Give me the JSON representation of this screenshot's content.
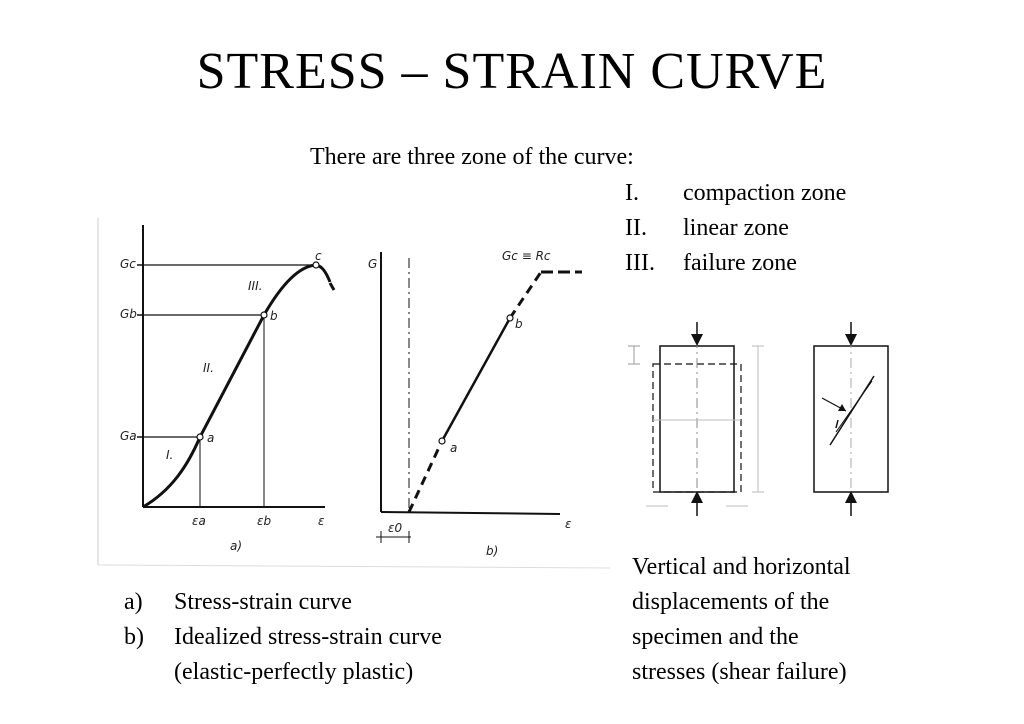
{
  "title": "STRESS – STRAIN CURVE",
  "intro": "There are three zone of the curve:",
  "zones": [
    {
      "num": "I.",
      "label": "compaction zone"
    },
    {
      "num": "II.",
      "label": "linear zone"
    },
    {
      "num": "III.",
      "label": "failure zone"
    }
  ],
  "figure_a": {
    "y_ticks": [
      "Gc",
      "Gb",
      "Ga"
    ],
    "x_ticks": [
      "εa",
      "εb",
      "ε"
    ],
    "points": [
      "a",
      "b",
      "c"
    ],
    "zone_labels": [
      "I.",
      "II.",
      "III."
    ],
    "caption": "a)"
  },
  "figure_b": {
    "y_label": "G",
    "top_label": "Gc ≡ Rc",
    "points": [
      "a",
      "b"
    ],
    "x_labels": [
      "ε0",
      "ε"
    ],
    "caption": "b)"
  },
  "captions_left": [
    {
      "label": "a)",
      "text": "Stress-strain curve"
    },
    {
      "label": "b)",
      "text": "Idealized stress-strain curve"
    },
    {
      "label": "",
      "text": "(elastic-perfectly plastic)"
    }
  ],
  "caption_right": [
    "Vertical and horizontal",
    "displacements of the",
    "specimen and the",
    "stresses (shear failure)"
  ]
}
